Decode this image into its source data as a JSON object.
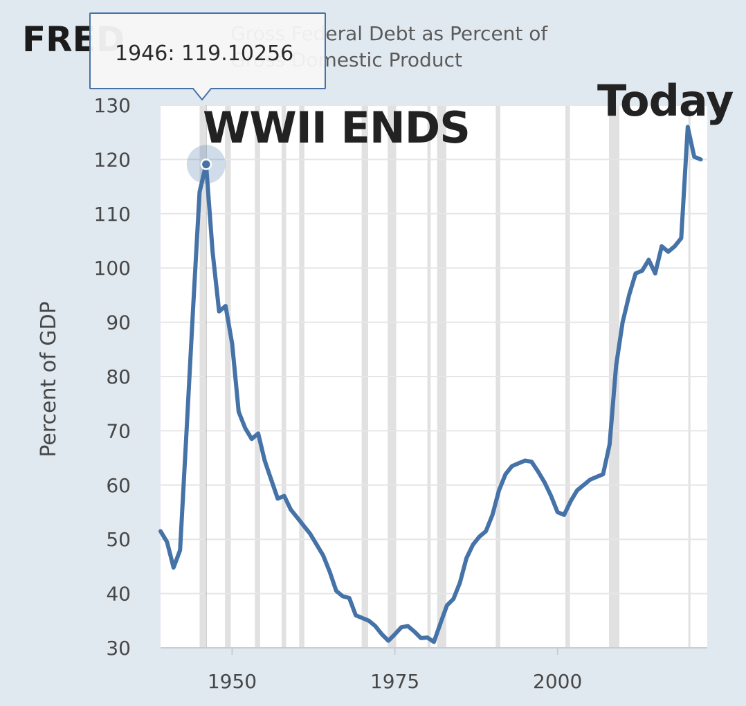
{
  "logo": {
    "text": "FRED"
  },
  "colors": {
    "line": "#4572a7",
    "background": "#e1e9f0",
    "plot": "#ffffff",
    "recession": "#e1e1e1",
    "grid": "#e6e6e6"
  },
  "tooltip": {
    "text": "1946: 119.10256"
  },
  "annotations": {
    "wwii": "WWII ENDS",
    "today": "Today"
  },
  "chart_data": {
    "type": "line",
    "title": "Gross Federal Debt as Percent of Gross Domestic Product",
    "ylabel": "Percent of GDP",
    "xlabel": "",
    "xlim": [
      1939,
      2023
    ],
    "ylim": [
      30,
      130
    ],
    "yticks": [
      30,
      40,
      50,
      60,
      70,
      80,
      90,
      100,
      110,
      120,
      130
    ],
    "xticks": [
      1950,
      1975,
      2000
    ],
    "grid": true,
    "recessions": [
      [
        1945,
        1945.8
      ],
      [
        1948.9,
        1949.8
      ],
      [
        1953.5,
        1954.3
      ],
      [
        1957.6,
        1958.3
      ],
      [
        1960.3,
        1961.1
      ],
      [
        1969.9,
        1970.9
      ],
      [
        1973.9,
        1975.2
      ],
      [
        1980.0,
        1980.5
      ],
      [
        1981.5,
        1982.9
      ],
      [
        1990.5,
        1991.2
      ],
      [
        2001.2,
        2001.9
      ],
      [
        2007.9,
        2009.5
      ],
      [
        2020.1,
        2020.3
      ]
    ],
    "highlight": {
      "x": 1946,
      "y": 119.10256
    },
    "series": [
      {
        "x": [
          1939,
          1940,
          1941,
          1942,
          1943,
          1944,
          1945,
          1946,
          1947,
          1948,
          1949,
          1950,
          1951,
          1952,
          1953,
          1954,
          1955,
          1956,
          1957,
          1958,
          1959,
          1960,
          1961,
          1962,
          1963,
          1964,
          1965,
          1966,
          1967,
          1968,
          1969,
          1970,
          1971,
          1972,
          1973,
          1974,
          1975,
          1976,
          1977,
          1978,
          1979,
          1980,
          1981,
          1982,
          1983,
          1984,
          1985,
          1986,
          1987,
          1988,
          1989,
          1990,
          1991,
          1992,
          1993,
          1994,
          1995,
          1996,
          1997,
          1998,
          1999,
          2000,
          2001,
          2002,
          2003,
          2004,
          2005,
          2006,
          2007,
          2008,
          2009,
          2010,
          2011,
          2012,
          2013,
          2014,
          2015,
          2016,
          2017,
          2018,
          2019,
          2020,
          2021,
          2022
        ],
        "values": [
          51.5,
          49.5,
          44.8,
          48.0,
          70.0,
          92.5,
          114.0,
          119.10256,
          103.0,
          92.0,
          93.0,
          86.0,
          73.5,
          70.5,
          68.5,
          69.5,
          64.5,
          61.0,
          57.5,
          58.0,
          55.5,
          54.0,
          52.5,
          51.0,
          49.0,
          47.0,
          44.0,
          40.5,
          39.5,
          39.2,
          36.0,
          35.5,
          35.0,
          34.0,
          32.5,
          31.3,
          32.5,
          33.8,
          34.0,
          33.0,
          31.8,
          31.9,
          31.1,
          34.5,
          37.8,
          39.0,
          42.0,
          46.5,
          49.0,
          50.5,
          51.5,
          54.5,
          59.0,
          62.0,
          63.5,
          64.0,
          64.5,
          64.3,
          62.5,
          60.5,
          58.0,
          55.0,
          54.5,
          57.0,
          59.0,
          60.0,
          61.0,
          61.5,
          62.0,
          67.5,
          82.0,
          90.0,
          95.0,
          99.0,
          99.5,
          101.5,
          99.0,
          104.0,
          103.0,
          104.0,
          105.5,
          126.0,
          120.5,
          120.0
        ]
      }
    ]
  }
}
